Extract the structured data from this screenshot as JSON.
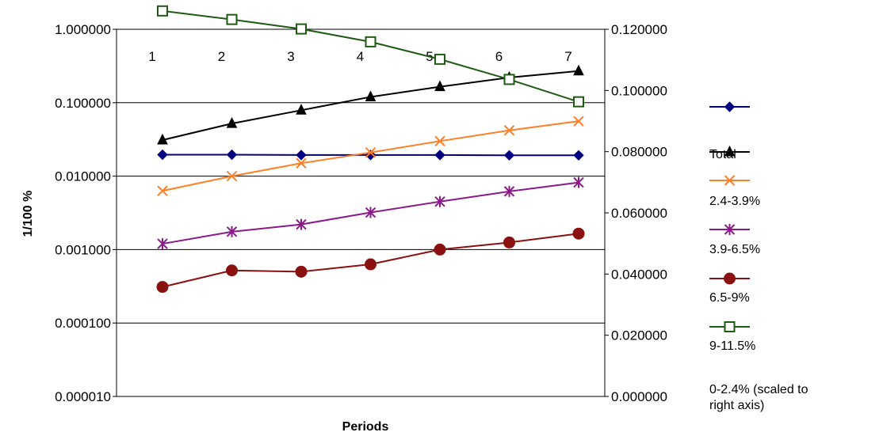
{
  "chart_data": {
    "type": "line",
    "xlabel": "Periods",
    "ylabel": "1/100 %",
    "categories": [
      "1",
      "2",
      "3",
      "4",
      "5",
      "6",
      "7"
    ],
    "y_left": {
      "scale": "log",
      "range": [
        1e-05,
        1
      ],
      "ticks": [
        "0.000010",
        "0.000100",
        "0.001000",
        "0.010000",
        "0.100000",
        "1.000000"
      ]
    },
    "y_right": {
      "scale": "linear",
      "range": [
        0,
        0.12
      ],
      "ticks": [
        "0.000000",
        "0.020000",
        "0.040000",
        "0.060000",
        "0.080000",
        "0.100000",
        "0.120000"
      ]
    },
    "grid": true,
    "legend_position": "right",
    "series": [
      {
        "name": "0-2.4% (scaled to right axis)",
        "axis": "right",
        "color": "#000080",
        "marker": "diamond",
        "values": [
          0.079,
          0.079,
          0.0789,
          0.0789,
          0.0789,
          0.0788,
          0.0788
        ]
      },
      {
        "name": "Total",
        "axis": "left",
        "color": "#000000",
        "marker": "triangle",
        "values": [
          0.031,
          0.052,
          0.079,
          0.12,
          0.165,
          0.22,
          0.27
        ]
      },
      {
        "name": "2.4-3.9%",
        "axis": "left",
        "color": "#ff7f27",
        "marker": "x",
        "values": [
          0.0063,
          0.01,
          0.015,
          0.021,
          0.03,
          0.042,
          0.056
        ]
      },
      {
        "name": "3.9-6.5%",
        "axis": "left",
        "color": "#8b1a89",
        "marker": "star",
        "values": [
          0.0012,
          0.00175,
          0.0022,
          0.0032,
          0.0045,
          0.0062,
          0.0082
        ]
      },
      {
        "name": "6.5-9%",
        "axis": "left",
        "color": "#8b1010",
        "marker": "circle",
        "values": [
          0.00031,
          0.00052,
          0.0005,
          0.00063,
          0.001,
          0.00125,
          0.00165
        ]
      },
      {
        "name": "9-11.5%",
        "axis": "right",
        "color": "#1e5a14",
        "marker": "square",
        "values": [
          0.126,
          0.1232,
          0.1201,
          0.1159,
          0.1102,
          0.1036,
          0.0963
        ]
      }
    ],
    "legend_order": [
      "",
      "Total",
      "2.4-3.9%",
      "3.9-6.5%",
      "6.5-9%",
      "9-11.5%",
      "0-2.4% (scaled to right axis)"
    ]
  }
}
